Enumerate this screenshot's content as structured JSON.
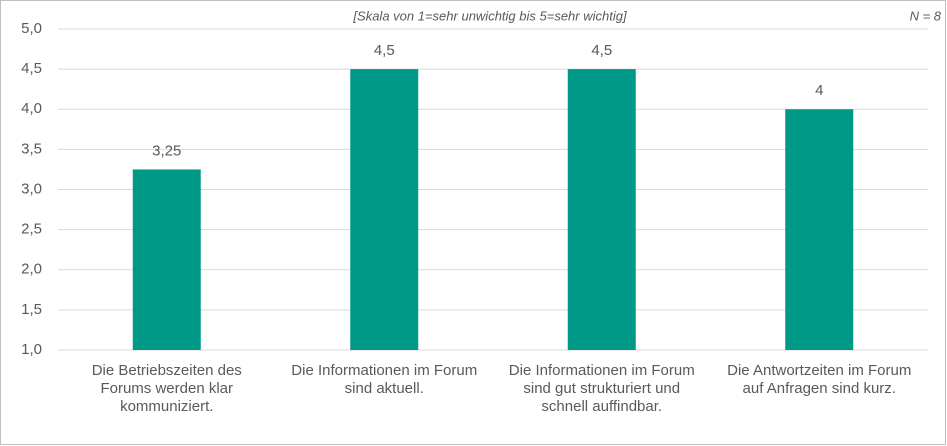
{
  "chart_data": {
    "type": "bar",
    "annotations": [
      "[Skala von 1=sehr unwichtig bis 5=sehr wichtig]",
      "N = 8"
    ],
    "categories": [
      "Die Betriebszeiten des Forums werden klar kommuniziert.",
      "Die Informationen im Forum sind aktuell.",
      "Die Informationen im Forum sind gut strukturiert und schnell auffindbar.",
      "Die Antwortzeiten im Forum auf Anfragen sind kurz."
    ],
    "values": [
      3.25,
      4.5,
      4.5,
      4
    ],
    "value_labels": [
      "3,25",
      "4,5",
      "4,5",
      "4"
    ],
    "color": "#009987",
    "ylim": [
      1,
      5
    ],
    "yticks": [
      {
        "value": 1,
        "label": "1,0"
      },
      {
        "value": 1.5,
        "label": "1,5"
      },
      {
        "value": 2,
        "label": "2,0"
      },
      {
        "value": 2.5,
        "label": "2,5"
      },
      {
        "value": 3,
        "label": "3,0"
      },
      {
        "value": 3.5,
        "label": "3,5"
      },
      {
        "value": 4,
        "label": "4,0"
      },
      {
        "value": 4.5,
        "label": "4,5"
      },
      {
        "value": 5,
        "label": "5,0"
      }
    ],
    "grid": true
  }
}
